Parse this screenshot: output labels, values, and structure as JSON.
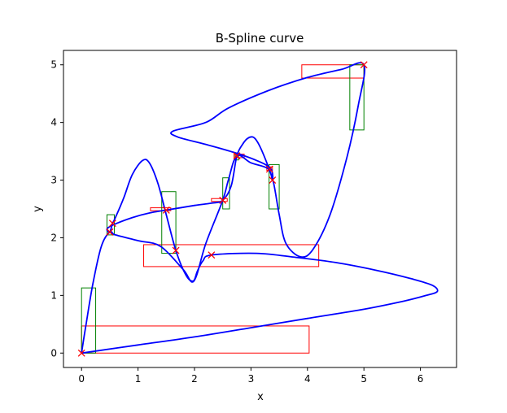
{
  "chart_data": {
    "type": "line",
    "title": "B-Spline curve",
    "xlabel": "x",
    "ylabel": "y",
    "xlim": [
      -0.32,
      6.64
    ],
    "ylim": [
      -0.25,
      5.25
    ],
    "xticks": [
      "0",
      "1",
      "2",
      "3",
      "4",
      "5",
      "6"
    ],
    "yticks": [
      "0",
      "1",
      "2",
      "3",
      "4",
      "5"
    ],
    "grid": false,
    "colors": {
      "curve": "#0000ff",
      "x_boxes": "#ff0000",
      "y_boxes": "#008000",
      "markers": "#ff0000"
    },
    "series": [
      {
        "type": "line",
        "color": "#0000ff",
        "points": [
          [
            0,
            0
          ],
          [
            1,
            0.14
          ],
          [
            2,
            0.28
          ],
          [
            3,
            0.44
          ],
          [
            4,
            0.6
          ],
          [
            5,
            0.76
          ],
          [
            5.7,
            0.9
          ],
          [
            6.1,
            1.0
          ],
          [
            6.3,
            1.07
          ],
          [
            6.2,
            1.18
          ],
          [
            5.8,
            1.3
          ],
          [
            5.2,
            1.44
          ],
          [
            4.5,
            1.57
          ],
          [
            3.8,
            1.66
          ],
          [
            3.1,
            1.73
          ],
          [
            2.3,
            1.7
          ],
          [
            2.15,
            1.6
          ],
          [
            2.05,
            1.42
          ],
          [
            1.98,
            1.25
          ],
          [
            1.85,
            1.35
          ],
          [
            1.67,
            1.78
          ],
          [
            1.5,
            2.4
          ],
          [
            1.35,
            2.95
          ],
          [
            1.2,
            3.3
          ],
          [
            1.08,
            3.34
          ],
          [
            0.9,
            3.1
          ],
          [
            0.75,
            2.7
          ],
          [
            0.6,
            2.35
          ],
          [
            0.55,
            2.25
          ],
          [
            0.5,
            2.1
          ],
          [
            0.45,
            2.15
          ],
          [
            0.55,
            2.22
          ],
          [
            0.9,
            2.35
          ],
          [
            1.2,
            2.43
          ],
          [
            1.5,
            2.48
          ],
          [
            2.0,
            2.56
          ],
          [
            2.3,
            2.6
          ],
          [
            2.5,
            2.65
          ],
          [
            2.65,
            2.9
          ],
          [
            2.75,
            3.42
          ],
          [
            2.85,
            3.62
          ],
          [
            2.95,
            3.73
          ],
          [
            3.05,
            3.74
          ],
          [
            3.15,
            3.6
          ],
          [
            3.3,
            3.25
          ],
          [
            3.4,
            2.95
          ],
          [
            3.5,
            2.4
          ],
          [
            3.62,
            1.9
          ],
          [
            3.88,
            1.67
          ],
          [
            4.1,
            1.8
          ],
          [
            4.4,
            2.4
          ],
          [
            4.7,
            3.4
          ],
          [
            4.9,
            4.3
          ],
          [
            5.0,
            5.0
          ],
          [
            4.6,
            4.92
          ],
          [
            4.0,
            4.78
          ],
          [
            3.3,
            4.55
          ],
          [
            2.6,
            4.25
          ],
          [
            2.2,
            4.0
          ],
          [
            1.62,
            3.85
          ],
          [
            1.7,
            3.75
          ],
          [
            2.2,
            3.62
          ],
          [
            2.7,
            3.48
          ],
          [
            3.1,
            3.34
          ],
          [
            3.35,
            3.2
          ],
          [
            3.38,
            3.0
          ],
          [
            3.3,
            3.2
          ],
          [
            3.0,
            3.3
          ],
          [
            2.75,
            3.42
          ],
          [
            2.6,
            3.0
          ],
          [
            2.5,
            2.65
          ],
          [
            2.2,
            1.9
          ],
          [
            1.99,
            1.25
          ],
          [
            1.8,
            1.45
          ],
          [
            1.4,
            1.85
          ],
          [
            1.0,
            1.95
          ],
          [
            0.6,
            2.05
          ],
          [
            0.5,
            2.1
          ],
          [
            0.35,
            1.85
          ],
          [
            0.2,
            1.2
          ],
          [
            0.08,
            0.5
          ],
          [
            0,
            0
          ]
        ]
      }
    ],
    "markers": [
      [
        0,
        0
      ],
      [
        0.5,
        2.1
      ],
      [
        0.55,
        2.25
      ],
      [
        1.5,
        2.48
      ],
      [
        1.67,
        1.78
      ],
      [
        2.3,
        1.7
      ],
      [
        2.5,
        2.65
      ],
      [
        2.75,
        3.42
      ],
      [
        3.33,
        3.19
      ],
      [
        3.38,
        3.0
      ],
      [
        5.0,
        5.0
      ]
    ],
    "x_boxes": [
      [
        0,
        4.03,
        0.0,
        0.47
      ],
      [
        1.1,
        4.2,
        1.5,
        1.88
      ],
      [
        1.22,
        1.58,
        2.47,
        2.52
      ],
      [
        2.3,
        2.58,
        2.63,
        2.68
      ],
      [
        2.7,
        2.88,
        3.39,
        3.45
      ],
      [
        3.28,
        3.38,
        3.17,
        3.23
      ],
      [
        3.9,
        5.0,
        4.77,
        5.0
      ]
    ],
    "y_boxes": [
      [
        0,
        0.25,
        0.0,
        1.13
      ],
      [
        0.45,
        0.58,
        2.05,
        2.4
      ],
      [
        1.42,
        1.67,
        1.73,
        2.8
      ],
      [
        2.5,
        2.62,
        2.5,
        3.04
      ],
      [
        2.72,
        2.78,
        3.35,
        3.47
      ],
      [
        3.32,
        3.5,
        2.5,
        3.27
      ],
      [
        4.75,
        5.0,
        3.87,
        5.0
      ]
    ]
  }
}
